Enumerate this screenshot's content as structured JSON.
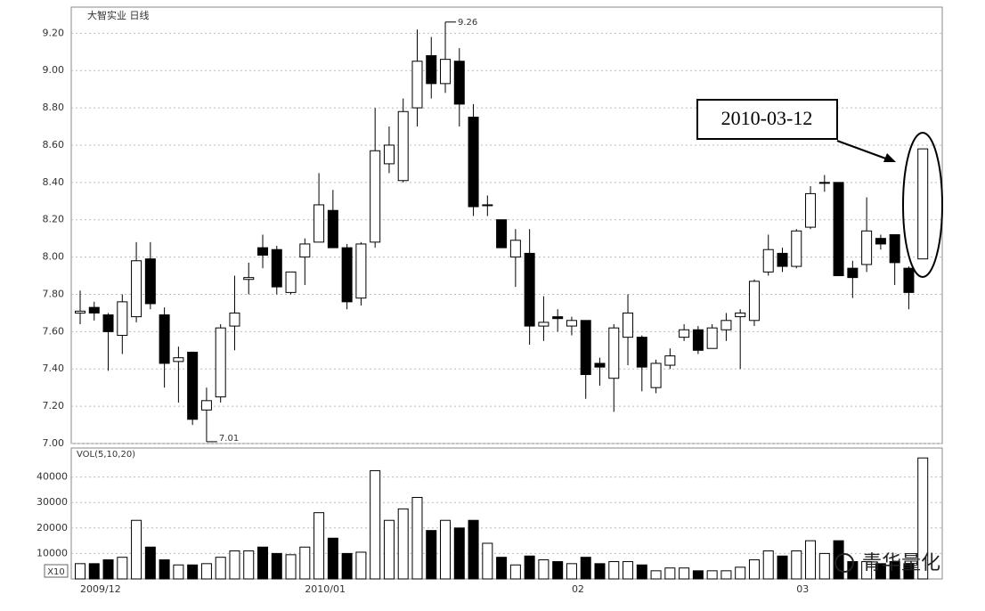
{
  "chart_data": [
    {
      "type": "candlestick",
      "title": "大智实业 日线",
      "categories": [
        "2009/12",
        null,
        null,
        null,
        null,
        null,
        null,
        null,
        null,
        null,
        null,
        null,
        null,
        null,
        null,
        null,
        "2010/01",
        null,
        null,
        null,
        null,
        null,
        null,
        null,
        null,
        null,
        null,
        null,
        null,
        null,
        null,
        null,
        null,
        null,
        null,
        "02",
        null,
        null,
        null,
        null,
        null,
        null,
        null,
        null,
        null,
        null,
        null,
        null,
        null,
        null,
        null,
        "03",
        null,
        null,
        null,
        null,
        null,
        null,
        null,
        null,
        null
      ],
      "open": [
        7.7,
        7.73,
        7.69,
        7.58,
        7.68,
        7.99,
        7.69,
        7.44,
        7.49,
        7.18,
        7.25,
        7.63,
        7.88,
        8.05,
        8.04,
        7.81,
        8.0,
        8.08,
        8.25,
        8.05,
        7.78,
        8.08,
        8.5,
        8.41,
        8.8,
        9.08,
        8.93,
        9.05,
        8.75,
        8.28,
        8.2,
        8.0,
        8.02,
        7.63,
        7.68,
        7.63,
        7.66,
        7.43,
        7.35,
        7.57,
        7.57,
        7.3,
        7.42,
        7.57,
        7.61,
        7.51,
        7.61,
        7.68,
        7.66,
        7.92,
        8.02,
        7.95,
        8.16,
        8.4,
        8.4,
        7.94,
        7.96,
        8.1,
        8.12,
        7.94,
        7.99
      ],
      "high": [
        7.82,
        7.76,
        7.7,
        7.8,
        8.08,
        8.08,
        7.73,
        7.52,
        7.49,
        7.3,
        7.64,
        7.9,
        7.97,
        8.12,
        8.06,
        7.92,
        8.1,
        8.45,
        8.36,
        8.07,
        8.08,
        8.8,
        8.7,
        8.85,
        9.22,
        9.18,
        9.26,
        9.12,
        8.82,
        8.33,
        8.2,
        8.15,
        8.15,
        7.79,
        7.72,
        7.68,
        7.66,
        7.46,
        7.64,
        7.8,
        7.58,
        7.45,
        7.51,
        7.64,
        7.63,
        7.64,
        7.7,
        7.72,
        7.88,
        8.12,
        8.05,
        8.15,
        8.38,
        8.44,
        8.4,
        7.98,
        8.32,
        8.12,
        8.12,
        7.95,
        8.58
      ],
      "low": [
        7.64,
        7.66,
        7.39,
        7.48,
        7.65,
        7.72,
        7.3,
        7.22,
        7.1,
        7.01,
        7.22,
        7.5,
        7.8,
        7.94,
        7.8,
        7.8,
        7.85,
        8.08,
        8.05,
        7.72,
        7.74,
        8.05,
        8.45,
        8.4,
        8.7,
        8.85,
        8.88,
        8.7,
        8.22,
        8.22,
        8.05,
        7.84,
        7.53,
        7.55,
        7.6,
        7.58,
        7.24,
        7.31,
        7.17,
        7.42,
        7.28,
        7.27,
        7.4,
        7.55,
        7.48,
        7.51,
        7.55,
        7.4,
        7.63,
        7.9,
        7.92,
        7.94,
        8.15,
        8.35,
        7.9,
        7.78,
        7.92,
        8.04,
        7.85,
        7.72,
        7.99
      ],
      "close": [
        7.71,
        7.7,
        7.6,
        7.76,
        7.98,
        7.75,
        7.43,
        7.46,
        7.13,
        7.23,
        7.62,
        7.7,
        7.89,
        8.01,
        7.84,
        7.92,
        8.07,
        8.28,
        8.05,
        7.76,
        8.07,
        8.57,
        8.6,
        8.78,
        9.05,
        8.93,
        9.06,
        8.82,
        8.27,
        8.28,
        8.05,
        8.09,
        7.63,
        7.65,
        7.67,
        7.66,
        7.37,
        7.41,
        7.62,
        7.7,
        7.41,
        7.43,
        7.47,
        7.61,
        7.5,
        7.62,
        7.66,
        7.7,
        7.87,
        8.04,
        7.95,
        8.14,
        8.34,
        8.4,
        7.9,
        7.89,
        8.14,
        8.07,
        7.97,
        7.81,
        8.58
      ],
      "ylim": [
        7.0,
        9.34
      ],
      "yticks": [
        {
          "value": 7.0,
          "label": "7.00"
        },
        {
          "value": 7.2,
          "label": "7.20"
        },
        {
          "value": 7.4,
          "label": "7.40"
        },
        {
          "value": 7.6,
          "label": "7.60"
        },
        {
          "value": 7.8,
          "label": "7.80"
        },
        {
          "value": 8.0,
          "label": "8.00"
        },
        {
          "value": 8.2,
          "label": "8.20"
        },
        {
          "value": 8.4,
          "label": "8.40"
        },
        {
          "value": 8.6,
          "label": "8.60"
        },
        {
          "value": 8.8,
          "label": "8.80"
        },
        {
          "value": 9.0,
          "label": "9.00"
        },
        {
          "value": 9.2,
          "label": "9.20"
        }
      ],
      "grid": true,
      "max_label": {
        "value": 9.26,
        "label": "9.26"
      },
      "min_label": {
        "value": 7.01,
        "label": "7.01"
      },
      "annotation": "2010-03-12",
      "up_color": "#ffffff",
      "down_color": "#000000"
    },
    {
      "type": "volume",
      "title": "VOL(5,10,20)",
      "unit": "X10",
      "values": [
        6000,
        6000,
        7500,
        8500,
        23000,
        12500,
        7500,
        5500,
        5500,
        6000,
        8500,
        11000,
        11000,
        12500,
        10000,
        9500,
        12500,
        26000,
        16000,
        10000,
        10500,
        42500,
        23000,
        27500,
        32000,
        19000,
        23000,
        20000,
        23000,
        14000,
        8500,
        5500,
        9000,
        7500,
        6800,
        6000,
        8500,
        6000,
        6800,
        6800,
        5500,
        3200,
        4300,
        4300,
        3200,
        3200,
        3200,
        4600,
        7500,
        11000,
        9000,
        11000,
        15000,
        10000,
        15000,
        6800,
        6800,
        6000,
        6800,
        6000,
        47500
      ],
      "ylim": [
        0,
        51400
      ],
      "yticks": [
        10000,
        20000,
        30000,
        40000
      ],
      "grid": true
    },
    {
      "watermark": "青华量化"
    }
  ]
}
